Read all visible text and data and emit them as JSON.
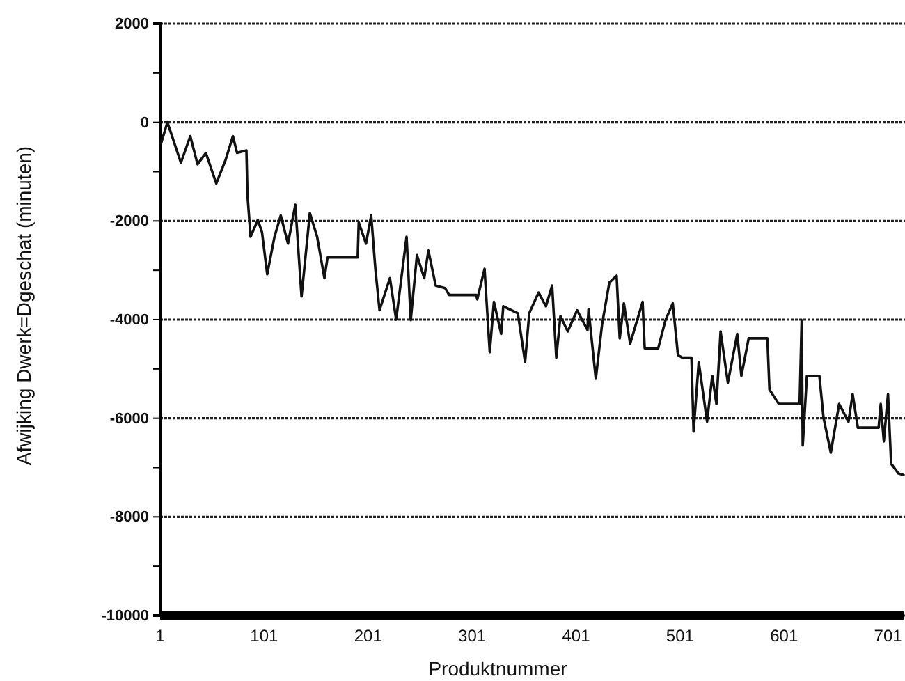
{
  "chart_data": {
    "type": "line",
    "xlabel": "Produktnummer",
    "ylabel": "Afwijking Dwerk=Dgeschat (minuten)",
    "xlim": [
      1,
      716
    ],
    "xticks": [
      1,
      101,
      201,
      301,
      401,
      501,
      601,
      701
    ],
    "ylim": [
      -10000,
      2000
    ],
    "yticks": [
      2000,
      {
        "value": 1000,
        "label": null
      },
      0,
      {
        "value": -1000,
        "label": null
      },
      -2000,
      {
        "value": -3000,
        "label": null
      },
      -4000,
      {
        "value": -5000,
        "label": null
      },
      -6000,
      {
        "value": -7000,
        "label": null
      },
      -8000,
      {
        "value": -9000,
        "label": null
      },
      -10000
    ],
    "grid": "y",
    "line_style": "solid",
    "marker": "none",
    "series": [
      {
        "color": "#111111",
        "x": [
          2,
          8,
          12,
          21,
          30,
          37,
          45,
          55,
          64,
          71,
          75,
          84,
          85,
          88,
          95,
          99,
          104,
          111,
          117,
          124,
          131,
          137,
          145,
          152,
          159,
          162,
          191,
          192,
          199,
          204,
          208,
          212,
          222,
          228,
          238,
          242,
          248,
          255,
          259,
          266,
          275,
          279,
          305,
          306,
          313,
          318,
          322,
          329,
          331,
          345,
          352,
          356,
          365,
          372,
          378,
          382,
          386,
          393,
          402,
          412,
          413,
          420,
          426,
          433,
          440,
          443,
          447,
          453,
          465,
          467,
          480,
          487,
          494,
          499,
          503,
          512,
          514,
          519,
          527,
          532,
          536,
          540,
          547,
          556,
          560,
          567,
          585,
          587,
          596,
          616,
          618,
          619,
          623,
          635,
          639,
          646,
          654,
          663,
          667,
          672,
          692,
          694,
          697,
          701,
          704,
          711,
          716
        ],
        "values": [
          -420,
          0,
          -250,
          -820,
          -280,
          -850,
          -620,
          -1240,
          -760,
          -280,
          -620,
          -570,
          -1470,
          -2320,
          -1980,
          -2230,
          -3080,
          -2320,
          -1890,
          -2460,
          -1670,
          -3530,
          -1840,
          -2320,
          -3160,
          -2740,
          -2740,
          -2030,
          -2460,
          -1890,
          -2970,
          -3810,
          -3160,
          -4000,
          -2320,
          -4010,
          -2690,
          -3160,
          -2600,
          -3310,
          -3360,
          -3500,
          -3500,
          -3590,
          -2970,
          -4660,
          -3640,
          -4290,
          -3730,
          -3870,
          -4860,
          -3870,
          -3450,
          -3730,
          -3310,
          -4770,
          -3930,
          -4240,
          -3810,
          -4210,
          -3790,
          -5200,
          -4100,
          -3250,
          -3110,
          -4380,
          -3670,
          -4490,
          -3640,
          -4580,
          -4580,
          -4010,
          -3670,
          -4720,
          -4770,
          -4770,
          -6270,
          -4860,
          -6070,
          -5140,
          -5710,
          -4240,
          -5280,
          -4290,
          -5140,
          -4380,
          -4380,
          -5420,
          -5710,
          -5710,
          -4010,
          -6550,
          -5140,
          -5140,
          -5990,
          -6700,
          -5710,
          -6070,
          -5510,
          -6190,
          -6190,
          -5710,
          -6470,
          -5510,
          -6920,
          -7120,
          -7150
        ]
      }
    ]
  }
}
